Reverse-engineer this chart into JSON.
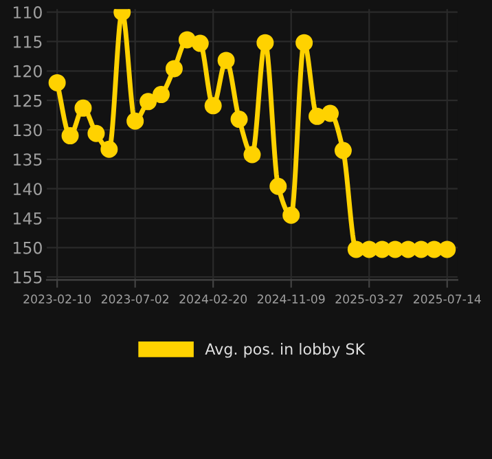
{
  "chart_data": {
    "type": "line",
    "categories": [
      "2023-02-10",
      null,
      null,
      null,
      null,
      null,
      "2023-07-02",
      null,
      null,
      null,
      null,
      null,
      "2024-02-20",
      null,
      null,
      null,
      null,
      null,
      "2024-11-09",
      null,
      null,
      null,
      null,
      null,
      "2025-03-27",
      null,
      null,
      null,
      null,
      null,
      "2025-07-14"
    ],
    "series": [
      {
        "name": "Avg. pos. in lobby SK",
        "color": "#ffd200",
        "values": [
          122,
          131,
          126.3,
          130.6,
          133.3,
          110,
          128.5,
          125.2,
          124,
          119.6,
          114.7,
          115.3,
          125.9,
          118.2,
          128.2,
          134.2,
          115.2,
          139.6,
          144.5,
          115.2,
          127.7,
          127.2,
          133.5,
          150.3,
          150.3,
          150.3,
          150.3,
          150.3,
          150.3,
          150.3,
          150.3
        ]
      }
    ],
    "ylim": [
      155.5,
      109.5
    ],
    "yticks": [
      110,
      115,
      120,
      125,
      130,
      135,
      140,
      145,
      150,
      155
    ],
    "grid": true,
    "legend": "bottom",
    "marker": "circle",
    "line_style": "solid"
  }
}
